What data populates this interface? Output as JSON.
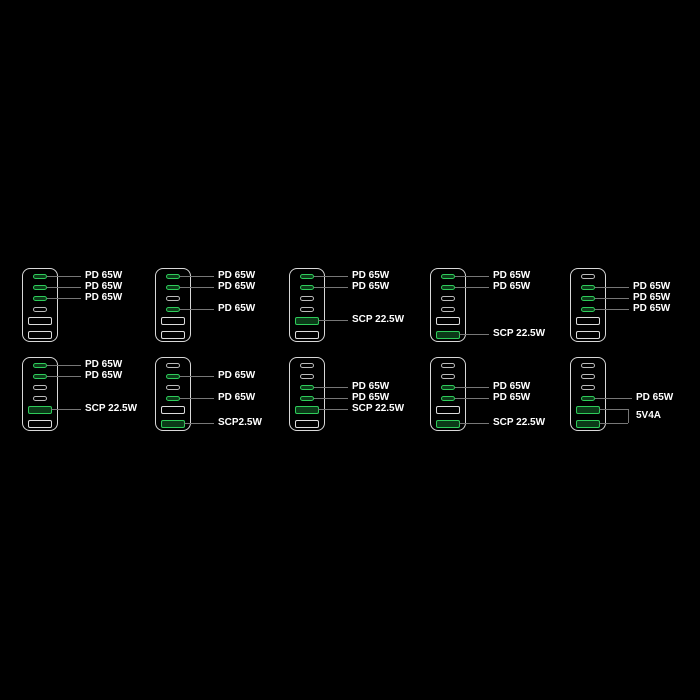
{
  "colors": {
    "active_port": "#2ecc5a",
    "background": "#000000"
  },
  "port_layout": [
    "usb-c",
    "usb-c",
    "usb-c",
    "usb-c",
    "usb-a",
    "usb-a"
  ],
  "configurations": [
    {
      "active": [
        0,
        1,
        2
      ],
      "labels": [
        {
          "port": 0,
          "text": "PD 65W"
        },
        {
          "port": 1,
          "text": "PD 65W"
        },
        {
          "port": 2,
          "text": "PD 65W"
        }
      ]
    },
    {
      "active": [
        0,
        1,
        3
      ],
      "labels": [
        {
          "port": 0,
          "text": "PD 65W"
        },
        {
          "port": 1,
          "text": "PD 65W"
        },
        {
          "port": 3,
          "text": "PD 65W"
        }
      ]
    },
    {
      "active": [
        0,
        1,
        4
      ],
      "labels": [
        {
          "port": 0,
          "text": "PD 65W"
        },
        {
          "port": 1,
          "text": "PD 65W"
        },
        {
          "port": 4,
          "text": "SCP 22.5W"
        }
      ]
    },
    {
      "active": [
        0,
        1,
        5
      ],
      "labels": [
        {
          "port": 0,
          "text": "PD 65W"
        },
        {
          "port": 1,
          "text": "PD 65W"
        },
        {
          "port": 5,
          "text": "SCP 22.5W"
        }
      ]
    },
    {
      "active": [
        1,
        2,
        3
      ],
      "labels": [
        {
          "port": 1,
          "text": "PD 65W"
        },
        {
          "port": 2,
          "text": "PD 65W"
        },
        {
          "port": 3,
          "text": "PD 65W"
        }
      ]
    },
    {
      "active": [
        0,
        1,
        4
      ],
      "labels": [
        {
          "port": 0,
          "text": "PD 65W"
        },
        {
          "port": 1,
          "text": "PD 65W"
        },
        {
          "port": 4,
          "text": "SCP 22.5W"
        }
      ]
    },
    {
      "active": [
        1,
        3,
        5
      ],
      "labels": [
        {
          "port": 1,
          "text": "PD 65W"
        },
        {
          "port": 3,
          "text": "PD 65W"
        },
        {
          "port": 5,
          "text": "SCP2.5W"
        }
      ]
    },
    {
      "active": [
        2,
        3,
        4
      ],
      "labels": [
        {
          "port": 2,
          "text": "PD 65W"
        },
        {
          "port": 3,
          "text": "PD 65W"
        },
        {
          "port": 4,
          "text": "SCP 22.5W"
        }
      ]
    },
    {
      "active": [
        2,
        3,
        5
      ],
      "labels": [
        {
          "port": 2,
          "text": "PD 65W"
        },
        {
          "port": 3,
          "text": "PD 65W"
        },
        {
          "port": 5,
          "text": "SCP 22.5W"
        }
      ]
    },
    {
      "active": [
        3,
        4,
        5
      ],
      "labels": [
        {
          "port": 3,
          "text": "PD 65W"
        }
      ],
      "bracket": {
        "ports": [
          4,
          5
        ],
        "text": "5V4A"
      }
    }
  ]
}
